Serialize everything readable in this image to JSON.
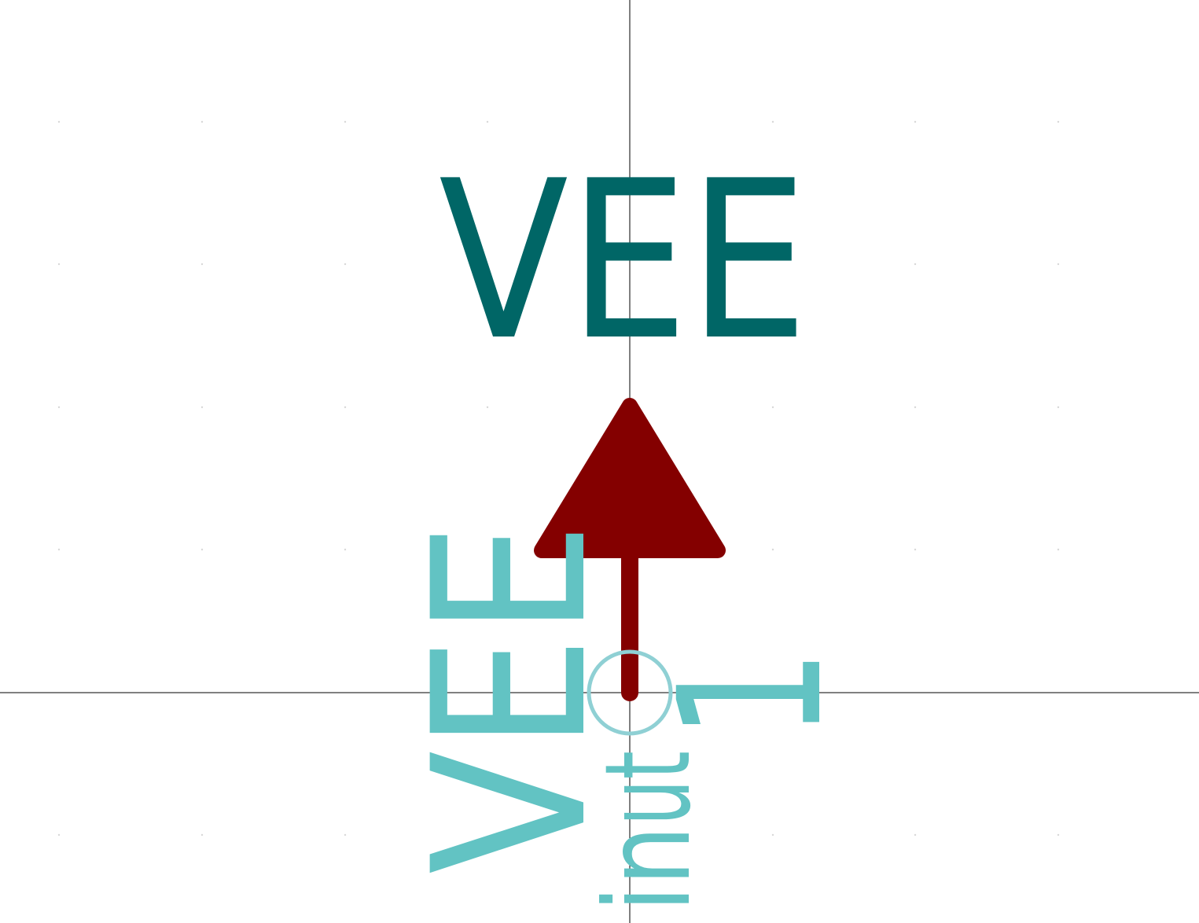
{
  "symbol": {
    "value_label": "VEE",
    "pin_name": "VEE",
    "pin_number": "1",
    "pin_type": "in",
    "pin_suffix": "ut"
  },
  "colors": {
    "background": "#ffffff",
    "axis": "#000000",
    "grid_dot": "#d8d8d8",
    "value_text": "#006666",
    "symbol_body": "#840000",
    "pin_text": "#62c3c3",
    "pin_circle": "#8fd0d4"
  }
}
